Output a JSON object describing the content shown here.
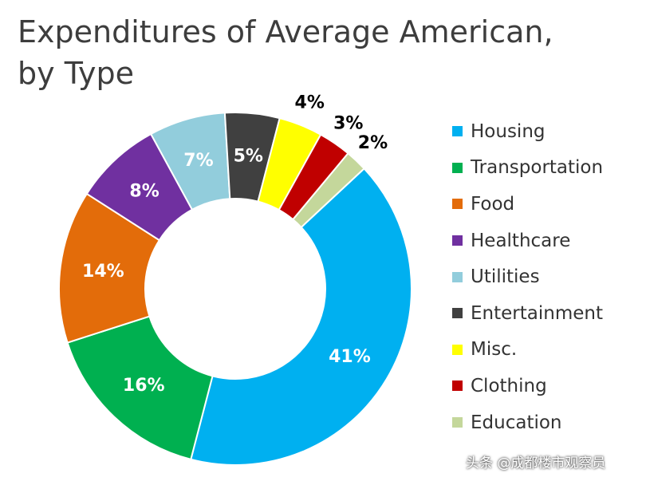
{
  "title": "Expenditures of Average American,\nby Type",
  "watermark": "头条 @成都楼市观察员",
  "chart_data": {
    "type": "pie",
    "donut": true,
    "title": "Expenditures of Average American, by Type",
    "legend_position": "right",
    "slices": [
      {
        "label": "Housing",
        "value": 41,
        "display": "41%",
        "color": "#00b0f0",
        "label_color": "#ffffff"
      },
      {
        "label": "Transportation",
        "value": 16,
        "display": "16%",
        "color": "#00b050",
        "label_color": "#ffffff"
      },
      {
        "label": "Food",
        "value": 14,
        "display": "14%",
        "color": "#e36c0a",
        "label_color": "#ffffff"
      },
      {
        "label": "Healthcare",
        "value": 8,
        "display": "8%",
        "color": "#7030a0",
        "label_color": "#ffffff"
      },
      {
        "label": "Utilities",
        "value": 7,
        "display": "7%",
        "color": "#92cddc",
        "label_color": "#ffffff"
      },
      {
        "label": "Entertainment",
        "value": 5,
        "display": "5%",
        "color": "#404040",
        "label_color": "#ffffff"
      },
      {
        "label": "Misc.",
        "value": 4,
        "display": "4%",
        "color": "#ffff00",
        "label_color": "#000000"
      },
      {
        "label": "Clothing",
        "value": 3,
        "display": "3%",
        "color": "#c00000",
        "label_color": "#000000"
      },
      {
        "label": "Education",
        "value": 2,
        "display": "2%",
        "color": "#c4d79b",
        "label_color": "#000000"
      }
    ]
  }
}
